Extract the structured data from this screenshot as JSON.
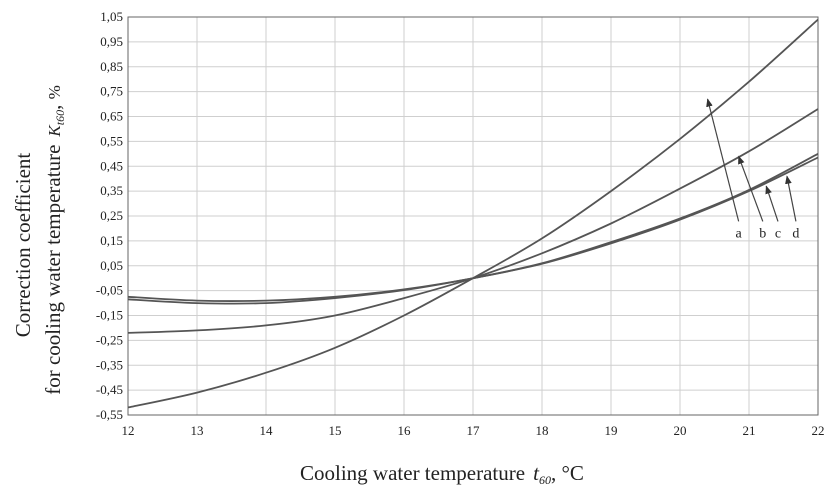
{
  "chart_data": {
    "type": "line",
    "xlabel": {
      "text": "Cooling water temperature",
      "symbol": "t",
      "subscript": "60",
      "unit": "°C"
    },
    "ylabel": {
      "line1": "Correction coefficient",
      "line2": "for cooling water temperature",
      "symbol": "K",
      "subscript": "t60",
      "unit": "%"
    },
    "xlim": [
      12,
      22
    ],
    "ylim": [
      -0.55,
      1.05
    ],
    "xticks": [
      "12",
      "13",
      "14",
      "15",
      "16",
      "17",
      "18",
      "19",
      "20",
      "21",
      "22"
    ],
    "yticks": [
      "1,05",
      "0,95",
      "0,85",
      "0,75",
      "0,65",
      "0,55",
      "0,45",
      "0,35",
      "0,25",
      "0,15",
      "0,05",
      "-0,05",
      "-0,15",
      "-0,25",
      "-0,35",
      "-0,45",
      "-0,55"
    ],
    "grid": true,
    "x": [
      12,
      13,
      14,
      15,
      16,
      17,
      18,
      19,
      20,
      21,
      22
    ],
    "series": [
      {
        "name": "a",
        "values": [
          -0.52,
          -0.46,
          -0.38,
          -0.28,
          -0.15,
          0.0,
          0.16,
          0.35,
          0.56,
          0.79,
          1.04
        ]
      },
      {
        "name": "b",
        "values": [
          -0.22,
          -0.21,
          -0.19,
          -0.15,
          -0.08,
          0.0,
          0.1,
          0.22,
          0.36,
          0.51,
          0.68
        ]
      },
      {
        "name": "c",
        "values": [
          -0.075,
          -0.09,
          -0.09,
          -0.075,
          -0.045,
          0.0,
          0.06,
          0.145,
          0.24,
          0.355,
          0.5
        ]
      },
      {
        "name": "d",
        "values": [
          -0.085,
          -0.1,
          -0.1,
          -0.08,
          -0.048,
          0.0,
          0.058,
          0.14,
          0.235,
          0.35,
          0.485
        ]
      }
    ],
    "annotations": [
      {
        "label": "a",
        "x": 20.4,
        "y": 0.72
      },
      {
        "label": "b",
        "x": 20.85,
        "y": 0.49
      },
      {
        "label": "c",
        "x": 21.25,
        "y": 0.37
      },
      {
        "label": "d",
        "x": 21.55,
        "y": 0.41
      }
    ],
    "annotation_label_y": 0.18,
    "annotation_label_x": [
      20.85,
      21.2,
      21.42,
      21.68
    ]
  }
}
